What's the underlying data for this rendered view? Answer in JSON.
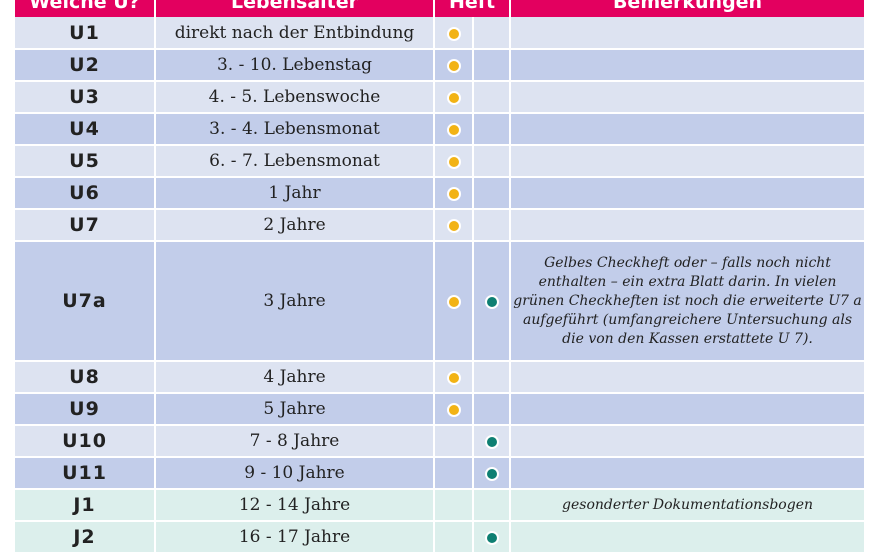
{
  "header": {
    "col_u": "Welche U?",
    "col_age": "Lebensalter",
    "col_heft": "Heft",
    "col_notes": "Bemerkungen"
  },
  "rows": [
    {
      "u": "U1",
      "age": "direkt nach der Entbindung",
      "yellow": true,
      "green": false,
      "note": ""
    },
    {
      "u": "U2",
      "age": "3. - 10. Lebenstag",
      "yellow": true,
      "green": false,
      "note": ""
    },
    {
      "u": "U3",
      "age": "4. - 5. Lebenswoche",
      "yellow": true,
      "green": false,
      "note": ""
    },
    {
      "u": "U4",
      "age": "3. - 4. Lebensmonat",
      "yellow": true,
      "green": false,
      "note": ""
    },
    {
      "u": "U5",
      "age": "6. - 7. Lebensmonat",
      "yellow": true,
      "green": false,
      "note": ""
    },
    {
      "u": "U6",
      "age": "1 Jahr",
      "yellow": true,
      "green": false,
      "note": ""
    },
    {
      "u": "U7",
      "age": "2 Jahre",
      "yellow": true,
      "green": false,
      "note": ""
    },
    {
      "u": "U7a",
      "age": "3 Jahre",
      "yellow": true,
      "green": true,
      "note": "Gelbes Checkheft oder – falls noch nicht enthalten – ein extra Blatt darin. In vielen grünen Checkheften ist noch die erweiterte U7 a aufgeführt (umfangreichere Untersuchung als die von den Kassen erstattete U 7)."
    },
    {
      "u": "U8",
      "age": "4 Jahre",
      "yellow": true,
      "green": false,
      "note": ""
    },
    {
      "u": "U9",
      "age": "5 Jahre",
      "yellow": true,
      "green": false,
      "note": ""
    },
    {
      "u": "U10",
      "age": "7 - 8 Jahre",
      "yellow": false,
      "green": true,
      "note": ""
    },
    {
      "u": "U11",
      "age": "9 - 10 Jahre",
      "yellow": false,
      "green": true,
      "note": ""
    },
    {
      "u": "J1",
      "age": "12 - 14 Jahre",
      "yellow": false,
      "green": false,
      "note": "gesonderter Dokumentationsbogen"
    },
    {
      "u": "J2",
      "age": "16 - 17 Jahre",
      "yellow": false,
      "green": true,
      "note": ""
    }
  ],
  "colors": {
    "header": "#e3005f",
    "row_light": "#dde3f1",
    "row_dark": "#c2cdea",
    "row_j": "#dcefec",
    "dot_yellow": "#f2b315",
    "dot_green": "#0e7f72"
  }
}
